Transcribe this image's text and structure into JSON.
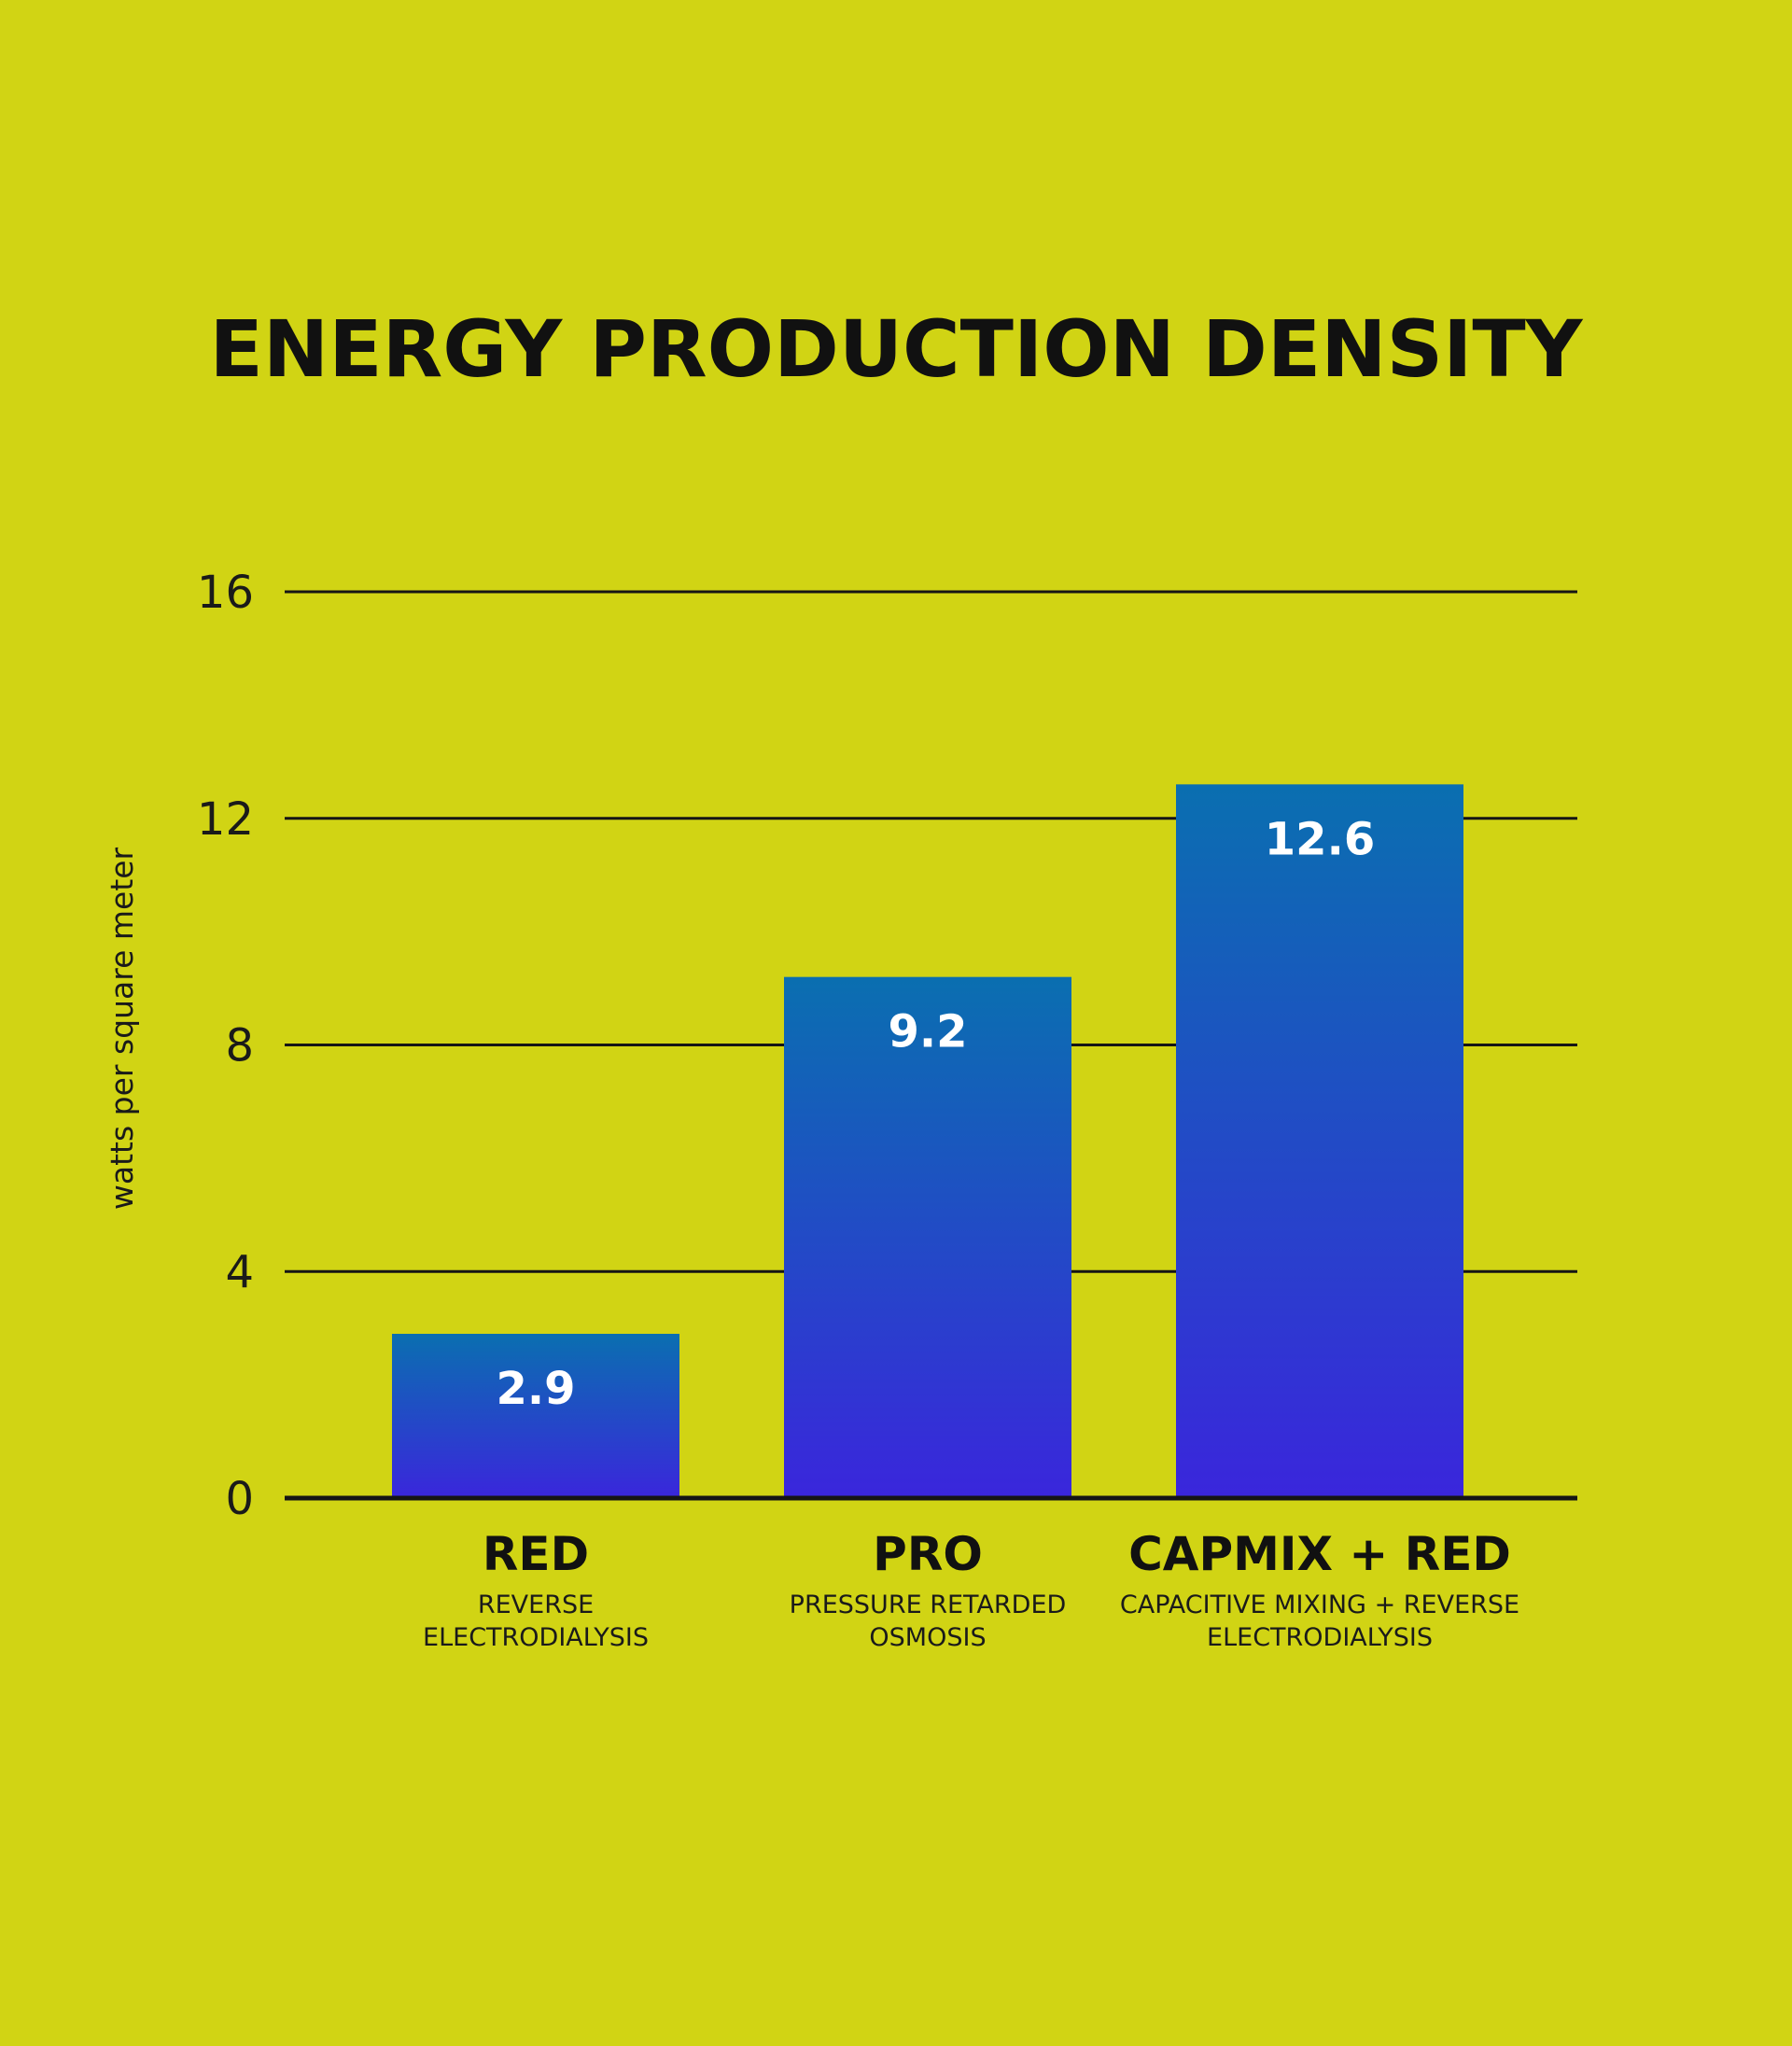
{
  "chart_data": {
    "type": "bar",
    "title": "ENERGY PRODUCTION DENSITY",
    "ylabel": "watts per square meter",
    "xlabel": "",
    "ylim": [
      0,
      16
    ],
    "yticks": [
      0,
      4,
      8,
      12,
      16
    ],
    "grid": true,
    "categories": [
      "RED",
      "PRO",
      "CAPMIX + RED"
    ],
    "category_subtitles": [
      [
        "REVERSE",
        "ELECTRODIALYSIS"
      ],
      [
        "PRESSURE RETARDED",
        "OSMOSIS"
      ],
      [
        "CAPACITIVE MIXING + REVERSE",
        "ELECTRODIALYSIS"
      ]
    ],
    "values": [
      2.9,
      9.2,
      12.6
    ],
    "value_labels": [
      "2.9",
      "9.2",
      "12.6"
    ],
    "colors": {
      "background": "#d1d414",
      "bar_top": "#0a6fb0",
      "bar_bottom": "#3a26dc",
      "text": "#111111",
      "value_text": "#ffffff"
    }
  }
}
